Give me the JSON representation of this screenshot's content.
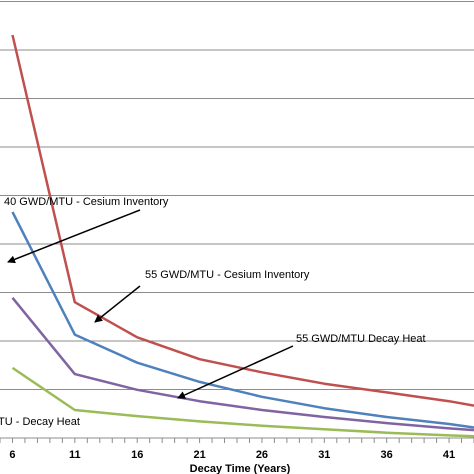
{
  "chart_data": {
    "type": "line",
    "title": "",
    "xlabel": "Decay Time (Years)",
    "ylabel": "",
    "x_ticks": [
      "6",
      "11",
      "16",
      "21",
      "26",
      "31",
      "36",
      "41"
    ],
    "x": [
      6,
      11,
      16,
      21,
      26,
      31,
      36,
      41,
      43
    ],
    "xlim": [
      5,
      43
    ],
    "grid": true,
    "series": [
      {
        "name": "55 GWD/MTU - Cesium Inventory",
        "color": "#c0504d",
        "values": [
          0.46,
          0.155,
          0.115,
          0.09,
          0.075,
          0.062,
          0.052,
          0.042,
          0.037
        ]
      },
      {
        "name": "",
        "color": "#4f81bd",
        "values": [
          0.258,
          0.118,
          0.086,
          0.064,
          0.047,
          0.034,
          0.024,
          0.016,
          0.012
        ]
      },
      {
        "name": "55 GWD/MTU Decay Heat",
        "color": "#8064a2",
        "values": [
          0.16,
          0.073,
          0.055,
          0.042,
          0.032,
          0.024,
          0.017,
          0.011,
          0.009
        ]
      },
      {
        "name": "",
        "color": "#9bbb59",
        "values": [
          0.08,
          0.032,
          0.025,
          0.019,
          0.014,
          0.01,
          0.006,
          0.003,
          0.002
        ]
      }
    ],
    "annotations": [
      {
        "text": "40 GWD/MTU - Cesium Inventory"
      },
      {
        "text": "55 GWD/MTU - Cesium Inventory"
      },
      {
        "text": "55 GWD/MTU Decay Heat"
      },
      {
        "text": "TU - Decay Heat"
      }
    ]
  }
}
